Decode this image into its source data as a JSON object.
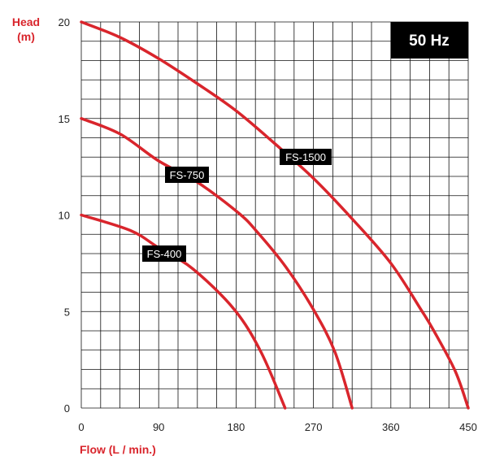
{
  "chart_data": {
    "type": "line",
    "title": "",
    "badge": "50 Hz",
    "xlabel": "Flow (L / min.)",
    "ylabel_line1": "Head",
    "ylabel_line2": "(m)",
    "xlim": [
      0,
      450
    ],
    "ylim": [
      0,
      20
    ],
    "xticks": [
      0,
      90,
      180,
      270,
      360,
      450
    ],
    "yticks": [
      0,
      5,
      10,
      15,
      20
    ],
    "x_grid_step": 22.5,
    "y_grid_step": 1,
    "grid": true,
    "colors": {
      "curve": "#d9252c",
      "grid": "#111111",
      "label_bg": "#000000",
      "axis_title": "#d9252c"
    },
    "series": [
      {
        "name": "FS-1500",
        "points": [
          [
            0,
            20
          ],
          [
            45,
            19.2
          ],
          [
            90,
            18.1
          ],
          [
            135,
            16.8
          ],
          [
            180,
            15.4
          ],
          [
            225,
            13.7
          ],
          [
            270,
            11.9
          ],
          [
            315,
            9.8
          ],
          [
            360,
            7.5
          ],
          [
            395,
            5.1
          ],
          [
            410,
            4.0
          ],
          [
            435,
            1.9
          ],
          [
            450,
            0
          ]
        ]
      },
      {
        "name": "FS-750",
        "points": [
          [
            0,
            15
          ],
          [
            45,
            14.2
          ],
          [
            90,
            12.8
          ],
          [
            135,
            11.7
          ],
          [
            183,
            10.1
          ],
          [
            205,
            9.1
          ],
          [
            238,
            7.3
          ],
          [
            270,
            5.1
          ],
          [
            295,
            2.9
          ],
          [
            315,
            0
          ]
        ]
      },
      {
        "name": "FS-400",
        "points": [
          [
            0,
            10
          ],
          [
            57,
            9.2
          ],
          [
            90,
            8.3
          ],
          [
            130,
            7.2
          ],
          [
            178,
            5.1
          ],
          [
            209,
            2.9
          ],
          [
            237,
            0
          ]
        ]
      }
    ]
  }
}
